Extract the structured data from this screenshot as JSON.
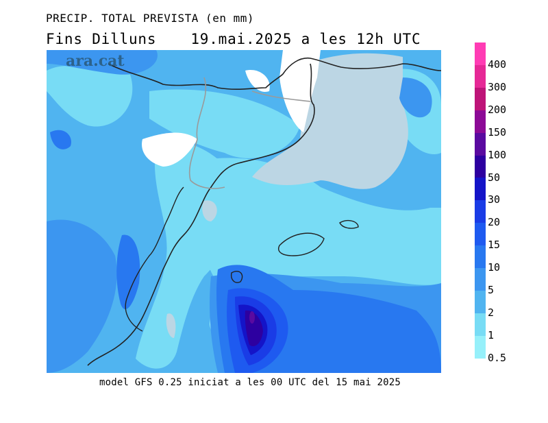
{
  "header": {
    "title": "PRECIP. TOTAL PREVISTA (en mm)",
    "subtitle_left": "Fins Dilluns",
    "subtitle_right": "19.mai.2025 a les 12h UTC"
  },
  "watermark": "ara.cat",
  "footer": "model GFS 0.25 iniciat a les 00 UTC del 15 mai 2025",
  "legend": {
    "levels": [
      {
        "label": "400",
        "color": "#ff3cb4"
      },
      {
        "label": "300",
        "color": "#e62896"
      },
      {
        "label": "200",
        "color": "#be1478"
      },
      {
        "label": "150",
        "color": "#8c0a96"
      },
      {
        "label": "100",
        "color": "#5a0aa0"
      },
      {
        "label": "50",
        "color": "#2d00a0"
      },
      {
        "label": "30",
        "color": "#1414c8"
      },
      {
        "label": "20",
        "color": "#1a3ce6"
      },
      {
        "label": "15",
        "color": "#1e5af0"
      },
      {
        "label": "10",
        "color": "#2878f0"
      },
      {
        "label": "5",
        "color": "#3c96f0"
      },
      {
        "label": "2",
        "color": "#50b4f0"
      },
      {
        "label": "1",
        "color": "#78dcf5"
      },
      {
        "label": "0.5",
        "color": "#96f0fa"
      }
    ]
  },
  "colors": {
    "land_dry": "#bcd6e4",
    "no_precip": "#ffffff",
    "coastline": "#222222",
    "border": "#9a9a9a"
  }
}
